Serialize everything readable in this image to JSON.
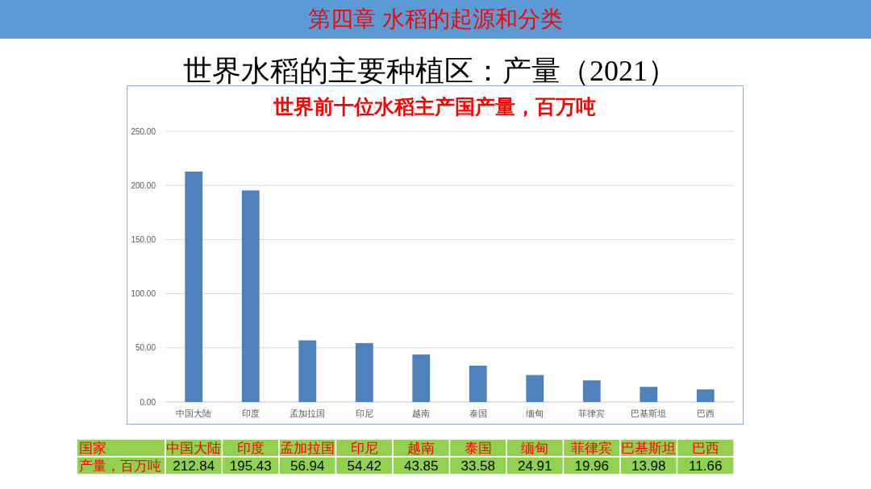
{
  "chart_data": {
    "type": "bar",
    "title": "世界水稻的主要种植区：产量（2021）",
    "subtitle": "世界前十位水稻主产国产量，百万吨",
    "annotations": [
      "第四章 水稻的起源和分类",
      "国家",
      "产量，百万吨"
    ],
    "categories": [
      "中国大陆",
      "印度",
      "孟加拉国",
      "印尼",
      "越南",
      "泰国",
      "缅甸",
      "菲律宾",
      "巴基斯坦",
      "巴西"
    ],
    "values": [
      212.84,
      195.43,
      56.94,
      54.42,
      43.85,
      33.58,
      24.91,
      19.96,
      13.98,
      11.66
    ],
    "color": "#4f81bd",
    "ylim": [
      0,
      250
    ],
    "yticks": [
      {
        "value": 0,
        "label": "0.00"
      },
      {
        "value": 50,
        "label": "50.00"
      },
      {
        "value": 100,
        "label": "100.00"
      },
      {
        "value": 150,
        "label": "150.00"
      },
      {
        "value": 200,
        "label": "200.00"
      },
      {
        "value": 250,
        "label": "250.00"
      }
    ],
    "grid": "y",
    "data_labels": true
  }
}
